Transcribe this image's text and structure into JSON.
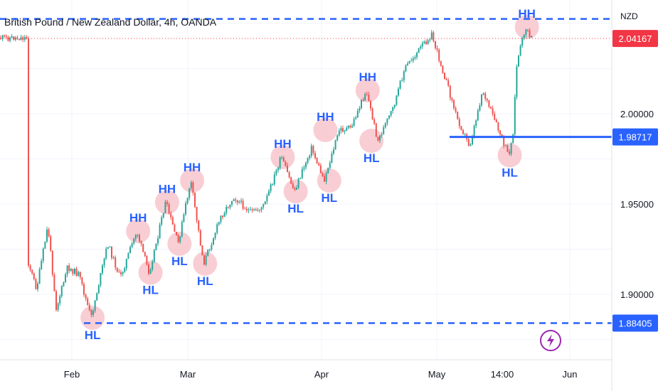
{
  "chart_data": {
    "type": "candlestick",
    "title": "British Pound / New Zealand Dollar, 4h, OANDA",
    "currency": "NZD",
    "x_ticks": [
      "Feb",
      "Mar",
      "Apr",
      "May",
      "14:00",
      "Jun"
    ],
    "y_ticks": [
      "2.00000",
      "1.95000",
      "1.90000"
    ],
    "ylim": [
      1.86,
      2.06
    ],
    "price_tags": [
      {
        "label": "2.04167",
        "value": 2.04167,
        "color": "#f23645"
      },
      {
        "label": "1.98717",
        "value": 1.98717,
        "color": "#2962ff"
      },
      {
        "label": "1.88405",
        "value": 1.88405,
        "color": "#2962ff"
      }
    ],
    "levels": [
      {
        "value": 2.0525,
        "style": "dashed",
        "extent": "full"
      },
      {
        "value": 1.98717,
        "style": "solid",
        "extent": "partial"
      },
      {
        "value": 1.88405,
        "style": "dashed",
        "extent": "partial"
      }
    ],
    "current_price": 2.04167,
    "path": [
      {
        "date": "Jan 17",
        "price": 1.918
      },
      {
        "date": "Jan 20",
        "price": 1.903
      },
      {
        "date": "Jan 24",
        "price": 1.938
      },
      {
        "date": "Jan 27",
        "price": 1.892
      },
      {
        "date": "Jan 31",
        "price": 1.915
      },
      {
        "date": "Feb 03",
        "price": 1.911
      },
      {
        "date": "Feb 06",
        "price": 1.887
      },
      {
        "date": "Feb 10",
        "price": 1.928
      },
      {
        "date": "Feb 13",
        "price": 1.909
      },
      {
        "date": "Feb 17",
        "price": 1.935
      },
      {
        "date": "Feb 20",
        "price": 1.912
      },
      {
        "date": "Feb 24",
        "price": 1.951
      },
      {
        "date": "Feb 27",
        "price": 1.928
      },
      {
        "date": "Mar 02",
        "price": 1.963
      },
      {
        "date": "Mar 05",
        "price": 1.917
      },
      {
        "date": "Mar 09",
        "price": 1.943
      },
      {
        "date": "Mar 12",
        "price": 1.954
      },
      {
        "date": "Mar 16",
        "price": 1.945
      },
      {
        "date": "Mar 19",
        "price": 1.949
      },
      {
        "date": "Mar 23",
        "price": 1.976
      },
      {
        "date": "Mar 26",
        "price": 1.957
      },
      {
        "date": "Mar 30",
        "price": 1.981
      },
      {
        "date": "Apr 02",
        "price": 1.963
      },
      {
        "date": "Apr 06",
        "price": 1.991
      },
      {
        "date": "Apr 09",
        "price": 1.992
      },
      {
        "date": "Apr 13",
        "price": 2.013
      },
      {
        "date": "Apr 16",
        "price": 1.985
      },
      {
        "date": "Apr 20",
        "price": 2.003
      },
      {
        "date": "Apr 23",
        "price": 2.025
      },
      {
        "date": "Apr 27",
        "price": 2.036
      },
      {
        "date": "Apr 30",
        "price": 2.044
      },
      {
        "date": "May 03",
        "price": 2.022
      },
      {
        "date": "May 06",
        "price": 1.998
      },
      {
        "date": "May 09",
        "price": 1.982
      },
      {
        "date": "May 12",
        "price": 2.013
      },
      {
        "date": "May 15",
        "price": 1.995
      },
      {
        "date": "May 18",
        "price": 1.977
      },
      {
        "date": "May 19",
        "price": 1.986
      },
      {
        "date": "May 20",
        "price": 2.028
      },
      {
        "date": "May 22",
        "price": 2.048
      },
      {
        "date": "May 23",
        "price": 2.042
      }
    ],
    "annotations": [
      {
        "label": "HL",
        "date": "Feb 06",
        "price": 1.887
      },
      {
        "label": "HH",
        "date": "Feb 17",
        "price": 1.935
      },
      {
        "label": "HL",
        "date": "Feb 20",
        "price": 1.912
      },
      {
        "label": "HH",
        "date": "Feb 24",
        "price": 1.951
      },
      {
        "label": "HL",
        "date": "Feb 27",
        "price": 1.928
      },
      {
        "label": "HH",
        "date": "Mar 02",
        "price": 1.963
      },
      {
        "label": "HL",
        "date": "Mar 05",
        "price": 1.917
      },
      {
        "label": "HH",
        "date": "Mar 23",
        "price": 1.976
      },
      {
        "label": "HL",
        "date": "Mar 26",
        "price": 1.957
      },
      {
        "label": "HH",
        "date": "Apr 02",
        "price": 1.991
      },
      {
        "label": "HL",
        "date": "Apr 03",
        "price": 1.963
      },
      {
        "label": "HH",
        "date": "Apr 13",
        "price": 2.013
      },
      {
        "label": "HL",
        "date": "Apr 14",
        "price": 1.985
      },
      {
        "label": "HL",
        "date": "May 18",
        "price": 1.977
      },
      {
        "label": "HH",
        "date": "May 22",
        "price": 2.048
      }
    ],
    "colors": {
      "up": "#26a69a",
      "down": "#ef5350",
      "level": "#2962ff",
      "highlight": "#f7c6cc",
      "label": "#2962ff"
    },
    "grid": true,
    "axis_position": "right"
  }
}
